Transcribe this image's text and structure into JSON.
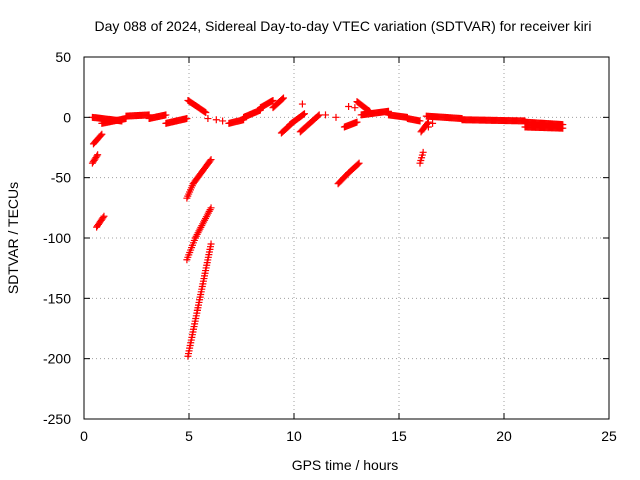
{
  "chart_data": {
    "type": "scatter",
    "title": "Day 088 of 2024, Sidereal Day-to-day VTEC variation (SDTVAR) for receiver kiri",
    "xlabel": "GPS time / hours",
    "ylabel": "SDTVAR / TECUs",
    "xlim": [
      0,
      25
    ],
    "ylim": [
      -250,
      50
    ],
    "xticks": [
      0,
      5,
      10,
      15,
      20,
      25
    ],
    "yticks": [
      -250,
      -200,
      -150,
      -100,
      -50,
      0,
      50
    ],
    "xtick_labels": [
      "0",
      "5",
      "10",
      "15",
      "20",
      "25"
    ],
    "ytick_labels": [
      "-250",
      "-200",
      "-150",
      "-100",
      "-50",
      "0",
      "50"
    ],
    "grid": true,
    "marker": "+",
    "series": [
      {
        "name": "SDTVAR",
        "color": "#ff0000",
        "segments": [
          {
            "x0": 0.45,
            "x1": 0.85,
            "y0": -22,
            "y1": -14
          },
          {
            "x0": 0.4,
            "x1": 0.65,
            "y0": -38,
            "y1": -31
          },
          {
            "x0": 0.6,
            "x1": 0.95,
            "y0": -91,
            "y1": -82
          },
          {
            "x0": 0.4,
            "x1": 1.8,
            "y0": 0,
            "y1": -3
          },
          {
            "x0": 0.85,
            "x1": 2.0,
            "y0": -5,
            "y1": -1
          },
          {
            "x0": 2.0,
            "x1": 3.1,
            "y0": 1,
            "y1": 2
          },
          {
            "x0": 3.1,
            "x1": 3.9,
            "y0": -1,
            "y1": 2
          },
          {
            "x0": 3.9,
            "x1": 4.9,
            "y0": -5,
            "y1": -1
          },
          {
            "x0": 4.95,
            "x1": 5.8,
            "y0": 14,
            "y1": 4
          },
          {
            "x0": 4.9,
            "x1": 5.2,
            "y0": -67,
            "y1": -55
          },
          {
            "x0": 5.2,
            "x1": 6.05,
            "y0": -55,
            "y1": -35
          },
          {
            "x0": 4.9,
            "x1": 5.3,
            "y0": -118,
            "y1": -100
          },
          {
            "x0": 5.3,
            "x1": 6.05,
            "y0": -100,
            "y1": -75
          },
          {
            "x0": 4.95,
            "x1": 5.4,
            "y0": -198,
            "y1": -160
          },
          {
            "x0": 5.4,
            "x1": 6.05,
            "y0": -160,
            "y1": -105
          },
          {
            "x0": 6.9,
            "x1": 7.6,
            "y0": -5,
            "y1": -2
          },
          {
            "x0": 7.6,
            "x1": 8.4,
            "y0": 0,
            "y1": 6
          },
          {
            "x0": 8.4,
            "x1": 9.0,
            "y0": 8,
            "y1": 14
          },
          {
            "x0": 9.0,
            "x1": 9.5,
            "y0": 8,
            "y1": 16
          },
          {
            "x0": 9.4,
            "x1": 9.9,
            "y0": -13,
            "y1": -5
          },
          {
            "x0": 9.8,
            "x1": 10.5,
            "y0": -6,
            "y1": 3
          },
          {
            "x0": 10.3,
            "x1": 11.2,
            "y0": -12,
            "y1": 2
          },
          {
            "x0": 12.1,
            "x1": 12.6,
            "y0": -55,
            "y1": -46
          },
          {
            "x0": 12.6,
            "x1": 13.1,
            "y0": -46,
            "y1": -38
          },
          {
            "x0": 12.4,
            "x1": 13.0,
            "y0": -8,
            "y1": -4
          },
          {
            "x0": 13.0,
            "x1": 13.6,
            "y0": 13,
            "y1": 5
          },
          {
            "x0": 13.2,
            "x1": 14.5,
            "y0": 2,
            "y1": 5
          },
          {
            "x0": 14.5,
            "x1": 15.4,
            "y0": 2,
            "y1": 0
          },
          {
            "x0": 15.4,
            "x1": 16.0,
            "y0": -1,
            "y1": -3
          },
          {
            "x0": 16.0,
            "x1": 16.15,
            "y0": -38,
            "y1": -29
          },
          {
            "x0": 16.05,
            "x1": 16.4,
            "y0": -12,
            "y1": -4
          },
          {
            "x0": 16.3,
            "x1": 18.0,
            "y0": 1,
            "y1": -1
          },
          {
            "x0": 18.0,
            "x1": 21.0,
            "y0": -2,
            "y1": -3
          },
          {
            "x0": 21.0,
            "x1": 22.8,
            "y0": -4,
            "y1": -6
          },
          {
            "x0": 21.0,
            "x1": 22.8,
            "y0": -8,
            "y1": -9
          }
        ],
        "points": [
          [
            5.9,
            -1
          ],
          [
            6.3,
            -2
          ],
          [
            6.6,
            -3
          ],
          [
            10.4,
            11
          ],
          [
            11.5,
            2
          ],
          [
            12.0,
            0
          ],
          [
            12.6,
            9
          ],
          [
            12.9,
            8
          ],
          [
            16.4,
            -8
          ],
          [
            16.6,
            -5
          ]
        ]
      }
    ]
  }
}
